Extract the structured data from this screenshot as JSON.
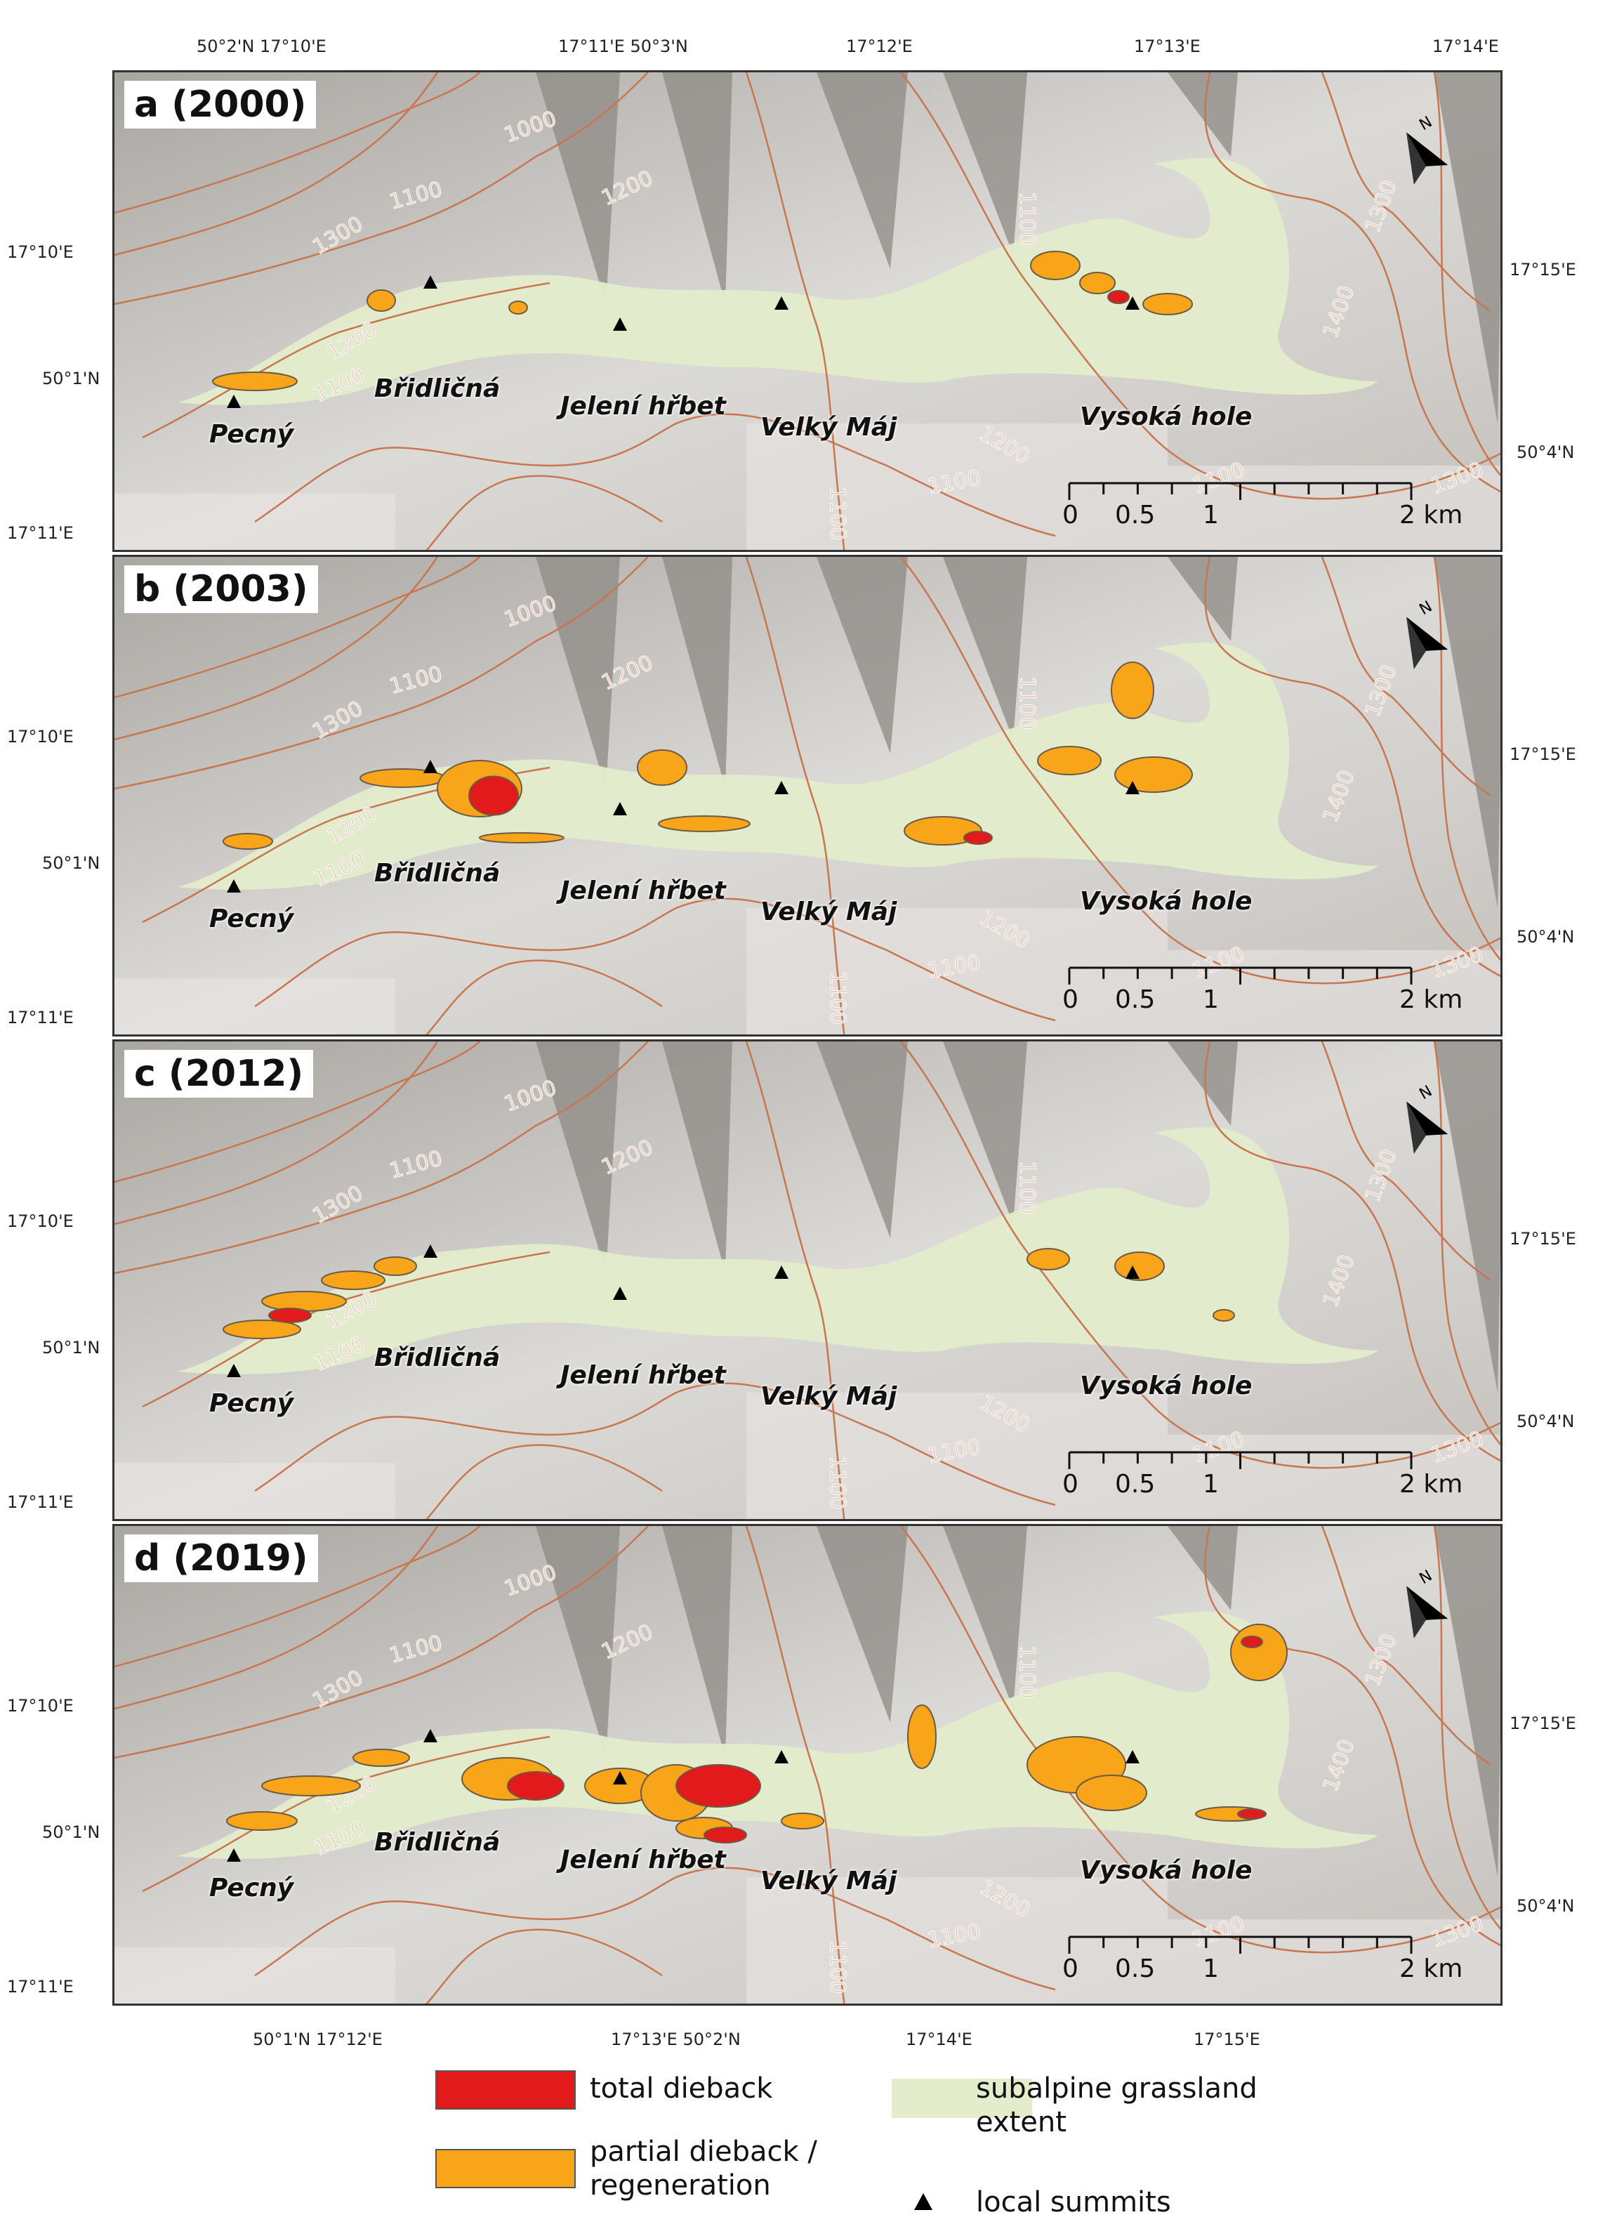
{
  "panels": [
    {
      "label": "a (2000)",
      "left_lat": "17°10'E",
      "left_lat2": "50°1'N",
      "left_bottom": "17°11'E",
      "right_top": "17°15'E",
      "right_bottom": "50°4'N"
    },
    {
      "label": "b (2003)",
      "left_lat": "17°10'E",
      "left_lat2": "50°1'N",
      "left_bottom": "17°11'E",
      "right_top": "17°15'E",
      "right_bottom": "50°4'N"
    },
    {
      "label": "c (2012)",
      "left_lat": "17°10'E",
      "left_lat2": "50°1'N",
      "left_bottom": "17°11'E",
      "right_top": "17°15'E",
      "right_bottom": "50°4'N"
    },
    {
      "label": "d (2019)",
      "left_lat": "17°10'E",
      "left_lat2": "50°1'N",
      "left_bottom": "17°11'E",
      "right_top": "17°15'E",
      "right_bottom": "50°4'N"
    }
  ],
  "top_ticks": [
    "50°2'N 17°10'E",
    "17°11'E 50°3'N",
    "17°12'E",
    "17°13'E",
    "17°14'E"
  ],
  "bottom_ticks": [
    "50°1'N 17°12'E",
    "17°13'E 50°2'N",
    "17°14'E",
    "17°15'E"
  ],
  "places": {
    "pecny": "Pecný",
    "bridlicna": "Břidličná",
    "jeleni": "Jelení hřbet",
    "velky": "Velký Máj",
    "vysoka": "Vysoká hole"
  },
  "contours": {
    "c1000": "1000",
    "c1100": "1100",
    "c1200": "1200",
    "c1300": "1300",
    "c1400": "1400"
  },
  "scale": {
    "t0": "0",
    "t05": "0.5",
    "t1": "1",
    "t2": "2 km"
  },
  "north_label": "N",
  "legend": {
    "total": "total dieback",
    "partial_line1": "partial dieback /",
    "partial_line2": "regeneration",
    "grass_line1": "subalpine grassland",
    "grass_line2": "extent",
    "summits": "local summits"
  },
  "colors": {
    "total": "#e31a1c",
    "partial": "#f9a51a",
    "grassland": "#e3eccb",
    "contour": "#c8764f",
    "hillshade": "#c9c7c3"
  }
}
